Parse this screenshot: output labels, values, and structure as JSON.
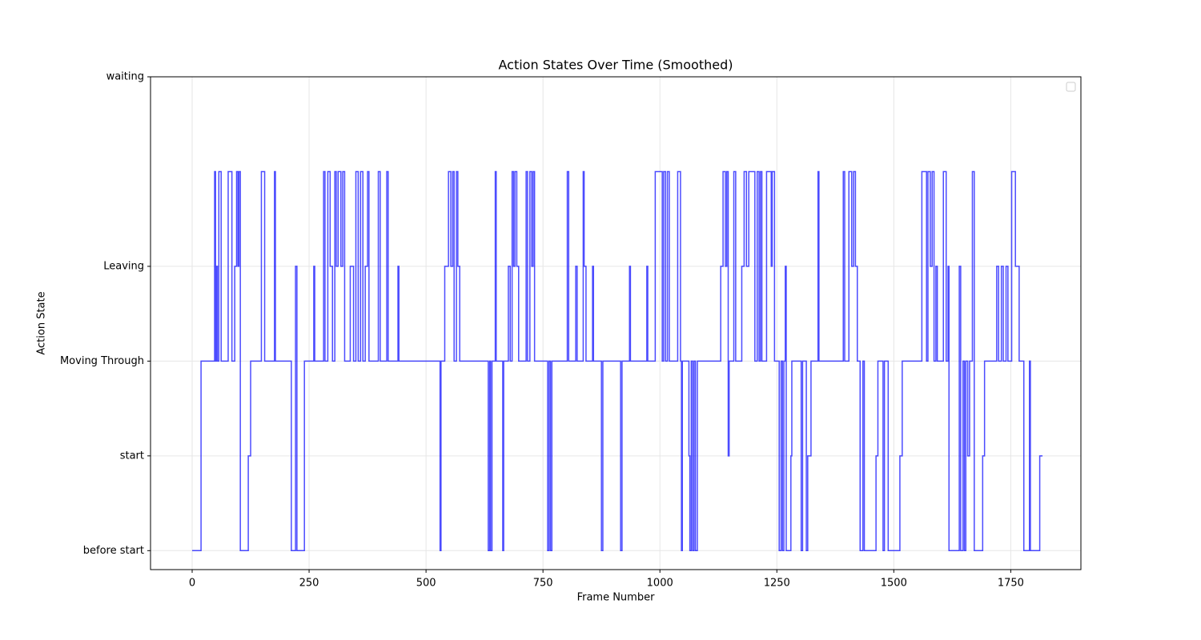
{
  "chart_data": {
    "type": "line",
    "title": "Action States Over Time (Smoothed)",
    "xlabel": "Frame Number",
    "ylabel": "Action State",
    "xlim": [
      -89,
      1900
    ],
    "ylim": [
      -0.2,
      5
    ],
    "xticks": [
      0,
      250,
      500,
      750,
      1000,
      1250,
      1500,
      1750
    ],
    "yticks": [
      {
        "value": 0,
        "label": "before start"
      },
      {
        "value": 1,
        "label": "start"
      },
      {
        "value": 2,
        "label": "Moving Through"
      },
      {
        "value": 3,
        "label": "Leaving"
      },
      {
        "value": 5,
        "label": "waiting"
      }
    ],
    "grid": true,
    "legend": "upper right",
    "step": true,
    "series": [
      {
        "color": "#0000ff",
        "x": [
          0,
          19,
          48,
          50,
          52,
          54,
          57,
          62,
          77,
          85,
          91,
          95,
          98,
          100,
          103,
          120,
          125,
          148,
          155,
          176,
          178,
          212,
          221,
          224,
          240,
          260,
          262,
          281,
          284,
          290,
          295,
          300,
          305,
          308,
          312,
          318,
          322,
          326,
          338,
          345,
          350,
          355,
          360,
          365,
          370,
          375,
          378,
          398,
          402,
          416,
          419,
          440,
          442,
          530,
          532,
          540,
          548,
          553,
          557,
          560,
          565,
          568,
          572,
          633,
          636,
          638,
          641,
          648,
          650,
          664,
          666,
          676,
          680,
          684,
          687,
          690,
          694,
          698,
          714,
          717,
          722,
          726,
          729,
          732,
          760,
          763,
          766,
          769,
          802,
          805,
          820,
          823,
          836,
          838,
          842,
          856,
          858,
          875,
          878,
          916,
          919,
          935,
          937,
          972,
          974,
          990,
          1005,
          1008,
          1012,
          1016,
          1020,
          1038,
          1044,
          1046,
          1048,
          1062,
          1064,
          1067,
          1070,
          1073,
          1076,
          1080,
          1130,
          1135,
          1140,
          1143,
          1146,
          1148,
          1158,
          1162,
          1175,
          1180,
          1185,
          1190,
          1203,
          1208,
          1212,
          1215,
          1218,
          1228,
          1238,
          1240,
          1245,
          1255,
          1259,
          1262,
          1265,
          1268,
          1270,
          1280,
          1282,
          1302,
          1305,
          1313,
          1316,
          1323,
          1338,
          1340,
          1392,
          1395,
          1404,
          1410,
          1414,
          1418,
          1422,
          1428,
          1434,
          1437,
          1462,
          1466,
          1477,
          1480,
          1488,
          1513,
          1518,
          1560,
          1570,
          1573,
          1578,
          1582,
          1586,
          1590,
          1593,
          1606,
          1612,
          1616,
          1618,
          1640,
          1643,
          1648,
          1651,
          1654,
          1658,
          1662,
          1668,
          1672,
          1690,
          1694,
          1720,
          1724,
          1730,
          1734,
          1740,
          1744,
          1752,
          1760,
          1768,
          1778,
          1790,
          1792,
          1812,
          1818
        ],
        "values": [
          0,
          2,
          4,
          2,
          3,
          2,
          4,
          2,
          4,
          2,
          3,
          4,
          3,
          4,
          0,
          1,
          2,
          4,
          2,
          4,
          2,
          0,
          3,
          0,
          2,
          3,
          2,
          4,
          2,
          4,
          3,
          2,
          4,
          3,
          4,
          3,
          4,
          2,
          3,
          2,
          4,
          2,
          4,
          2,
          3,
          4,
          2,
          4,
          2,
          4,
          2,
          3,
          2,
          0,
          2,
          3,
          4,
          3,
          4,
          2,
          4,
          3,
          2,
          0,
          2,
          0,
          2,
          4,
          2,
          0,
          2,
          3,
          2,
          4,
          3,
          4,
          3,
          2,
          4,
          2,
          4,
          3,
          4,
          2,
          0,
          2,
          0,
          2,
          4,
          2,
          3,
          2,
          4,
          3,
          2,
          3,
          2,
          0,
          2,
          0,
          2,
          3,
          2,
          3,
          2,
          4,
          2,
          4,
          2,
          4,
          2,
          4,
          2,
          0,
          2,
          1,
          0,
          2,
          0,
          2,
          0,
          2,
          3,
          4,
          3,
          4,
          1,
          2,
          4,
          2,
          3,
          4,
          3,
          4,
          2,
          4,
          2,
          4,
          2,
          4,
          3,
          4,
          2,
          0,
          2,
          0,
          2,
          3,
          0,
          1,
          2,
          0,
          2,
          0,
          1,
          2,
          4,
          2,
          4,
          2,
          4,
          3,
          4,
          3,
          2,
          0,
          2,
          0,
          1,
          2,
          0,
          2,
          0,
          1,
          2,
          4,
          2,
          4,
          3,
          4,
          2,
          3,
          2,
          4,
          2,
          3,
          0,
          3,
          0,
          2,
          0,
          2,
          1,
          2,
          4,
          0,
          1,
          2,
          3,
          2,
          3,
          2,
          3,
          2,
          4,
          3,
          2,
          0,
          2,
          0,
          1,
          1
        ]
      }
    ]
  }
}
